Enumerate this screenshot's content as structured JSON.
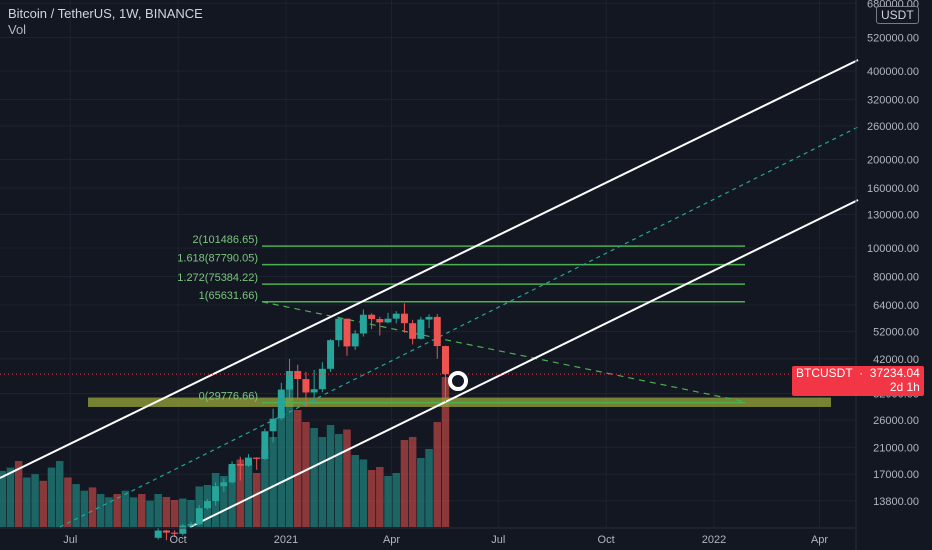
{
  "header": {
    "title": "Bitcoin / TetherUS, 1W, BINANCE",
    "volume_label": "Vol"
  },
  "currency_label": "USDT",
  "price_tag": {
    "symbol": "BTCUSDT",
    "price": "37234.04",
    "countdown": "2d 1h"
  },
  "colors": {
    "background": "#131722",
    "up": "#26a69a",
    "down": "#ef5350",
    "fib": "#4caf50",
    "zone": "#9aa838",
    "channel": "#ffffff",
    "midline": "#26a69a",
    "price_tag": "#f23645"
  },
  "chart_data": {
    "type": "candlestick",
    "symbol": "BTCUSDT",
    "interval": "1W",
    "y_scale": "log",
    "ylim": [
      12500,
      680000
    ],
    "y_ticks": [
      13800,
      17000,
      21000,
      26000,
      32000,
      42000,
      52000,
      64000,
      80000,
      100000,
      130000,
      160000,
      200000,
      260000,
      320000,
      400000,
      520000,
      680000
    ],
    "y_tick_labels": [
      "13800.00",
      "17000.00",
      "21000.00",
      "26000.00",
      "32000.00",
      "42000.00",
      "52000.00",
      "64000.00",
      "80000.00",
      "100000.00",
      "130000.00",
      "160000.00",
      "200000.00",
      "260000.00",
      "320000.00",
      "400000.00",
      "520000.00",
      "680000.00"
    ],
    "x_ticks": [
      {
        "label": "Jul",
        "date": "2020-07-01"
      },
      {
        "label": "Oct",
        "date": "2020-10-01"
      },
      {
        "label": "2021",
        "date": "2021-01-01"
      },
      {
        "label": "Apr",
        "date": "2021-04-01"
      },
      {
        "label": "Jul",
        "date": "2021-07-01"
      },
      {
        "label": "Oct",
        "date": "2021-10-01"
      },
      {
        "label": "2022",
        "date": "2022-01-01"
      },
      {
        "label": "Apr",
        "date": "2022-04-01"
      }
    ],
    "last_price": 37234.04,
    "candles": [
      {
        "date": "2020-09-14",
        "o": 10330,
        "h": 11180,
        "l": 10200,
        "c": 10940,
        "v": 0.22
      },
      {
        "date": "2020-09-21",
        "o": 10940,
        "h": 11000,
        "l": 10140,
        "c": 10760,
        "v": 0.2
      },
      {
        "date": "2020-09-28",
        "o": 10760,
        "h": 10950,
        "l": 10400,
        "c": 10660,
        "v": 0.18
      },
      {
        "date": "2020-10-05",
        "o": 10660,
        "h": 11500,
        "l": 10530,
        "c": 11370,
        "v": 0.19
      },
      {
        "date": "2020-10-12",
        "o": 11370,
        "h": 11700,
        "l": 11200,
        "c": 11500,
        "v": 0.18
      },
      {
        "date": "2020-10-19",
        "o": 11500,
        "h": 13350,
        "l": 11400,
        "c": 13030,
        "v": 0.27
      },
      {
        "date": "2020-10-26",
        "o": 13030,
        "h": 14000,
        "l": 12900,
        "c": 13780,
        "v": 0.28
      },
      {
        "date": "2020-11-02",
        "o": 13780,
        "h": 15960,
        "l": 13300,
        "c": 15480,
        "v": 0.36
      },
      {
        "date": "2020-11-09",
        "o": 15480,
        "h": 16480,
        "l": 14800,
        "c": 15960,
        "v": 0.34
      },
      {
        "date": "2020-11-16",
        "o": 15960,
        "h": 18800,
        "l": 15800,
        "c": 18420,
        "v": 0.4
      },
      {
        "date": "2020-11-23",
        "o": 18420,
        "h": 19500,
        "l": 16200,
        "c": 18180,
        "v": 0.45
      },
      {
        "date": "2020-11-30",
        "o": 18180,
        "h": 19900,
        "l": 18000,
        "c": 19370,
        "v": 0.42
      },
      {
        "date": "2020-12-07",
        "o": 19370,
        "h": 19420,
        "l": 17600,
        "c": 19170,
        "v": 0.36
      },
      {
        "date": "2020-12-14",
        "o": 19170,
        "h": 24300,
        "l": 19000,
        "c": 23800,
        "v": 0.52
      },
      {
        "date": "2020-12-21",
        "o": 23800,
        "h": 28400,
        "l": 21800,
        "c": 26270,
        "v": 0.6
      },
      {
        "date": "2020-12-28",
        "o": 26270,
        "h": 34800,
        "l": 26000,
        "c": 33000,
        "v": 0.72
      },
      {
        "date": "2021-01-04",
        "o": 33000,
        "h": 41950,
        "l": 31000,
        "c": 38150,
        "v": 0.95
      },
      {
        "date": "2021-01-11",
        "o": 38150,
        "h": 40100,
        "l": 30400,
        "c": 35830,
        "v": 0.78
      },
      {
        "date": "2021-01-18",
        "o": 35830,
        "h": 37900,
        "l": 28800,
        "c": 32260,
        "v": 0.7
      },
      {
        "date": "2021-01-25",
        "o": 32260,
        "h": 38500,
        "l": 29250,
        "c": 33090,
        "v": 0.66
      },
      {
        "date": "2021-02-01",
        "o": 33090,
        "h": 40900,
        "l": 32300,
        "c": 38830,
        "v": 0.6
      },
      {
        "date": "2021-02-08",
        "o": 38830,
        "h": 49000,
        "l": 37900,
        "c": 48580,
        "v": 0.68
      },
      {
        "date": "2021-02-15",
        "o": 48580,
        "h": 58300,
        "l": 46200,
        "c": 57490,
        "v": 0.62
      },
      {
        "date": "2021-02-22",
        "o": 57490,
        "h": 57500,
        "l": 43000,
        "c": 46280,
        "v": 0.65
      },
      {
        "date": "2021-03-01",
        "o": 46280,
        "h": 52600,
        "l": 45000,
        "c": 51200,
        "v": 0.48
      },
      {
        "date": "2021-03-08",
        "o": 51200,
        "h": 61800,
        "l": 50000,
        "c": 59300,
        "v": 0.45
      },
      {
        "date": "2021-03-15",
        "o": 59300,
        "h": 60000,
        "l": 53000,
        "c": 57350,
        "v": 0.38
      },
      {
        "date": "2021-03-22",
        "o": 57350,
        "h": 58400,
        "l": 50400,
        "c": 55850,
        "v": 0.4
      },
      {
        "date": "2021-03-29",
        "o": 55850,
        "h": 60200,
        "l": 55500,
        "c": 57500,
        "v": 0.34
      },
      {
        "date": "2021-04-05",
        "o": 57500,
        "h": 61000,
        "l": 55400,
        "c": 59800,
        "v": 0.36
      },
      {
        "date": "2021-04-12",
        "o": 59800,
        "h": 64850,
        "l": 51500,
        "c": 55500,
        "v": 0.58
      },
      {
        "date": "2021-04-19",
        "o": 55500,
        "h": 57000,
        "l": 47000,
        "c": 49100,
        "v": 0.6
      },
      {
        "date": "2021-04-26",
        "o": 49100,
        "h": 58400,
        "l": 48800,
        "c": 57100,
        "v": 0.46
      },
      {
        "date": "2021-05-03",
        "o": 57100,
        "h": 59500,
        "l": 53400,
        "c": 58300,
        "v": 0.52
      },
      {
        "date": "2021-05-10",
        "o": 58300,
        "h": 59600,
        "l": 42000,
        "c": 46400,
        "v": 0.7
      },
      {
        "date": "2021-05-17",
        "o": 46400,
        "h": 46500,
        "l": 30000,
        "c": 37234,
        "v": 1.0
      }
    ],
    "fib_levels": [
      {
        "label": "0(29776.66)",
        "price": 29776.66
      },
      {
        "label": "1(65631.66)",
        "price": 65631.66
      },
      {
        "label": "1.272(75384.22)",
        "price": 75384.22
      },
      {
        "label": "1.618(87790.05)",
        "price": 87790.05
      },
      {
        "label": "2(101486.65)",
        "price": 101486.65
      }
    ],
    "support_zone": {
      "low": 28800,
      "high": 31000
    }
  }
}
